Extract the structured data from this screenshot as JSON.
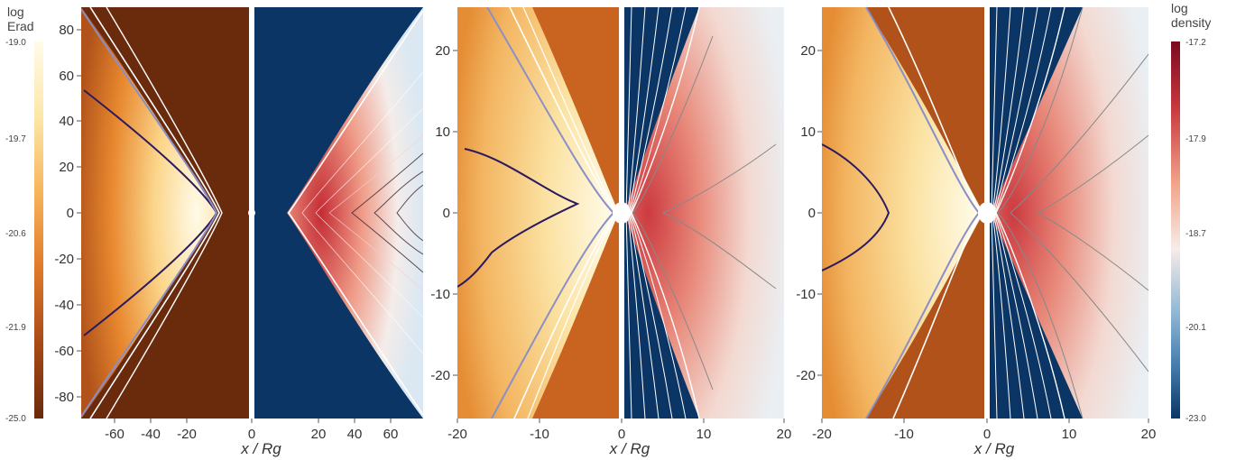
{
  "colorbars": {
    "left": {
      "title_line1": "log",
      "title_line2": "Erad",
      "ticks": [
        "-19.0",
        "-19.7",
        "-20.6",
        "-21.9",
        "-25.0"
      ],
      "colors": [
        "#fffbe8",
        "#fde7a8",
        "#f7b45b",
        "#e07a2a",
        "#a84a17",
        "#6a2a0c"
      ]
    },
    "right": {
      "title_line1": "log",
      "title_line2": "density",
      "ticks": [
        "-17.2",
        "-17.9",
        "-18.7",
        "-20.1",
        "-23.0"
      ],
      "colors": [
        "#7a0a1f",
        "#c93a3f",
        "#f2a58c",
        "#f6ece8",
        "#8fb7d6",
        "#3f78ab",
        "#0b3564"
      ]
    }
  },
  "panels": [
    {
      "xlabel": "x / Rg",
      "xticks": [
        "-60",
        "-40",
        "-20",
        "0",
        "20",
        "40",
        "60"
      ],
      "yticks": [
        "80",
        "60",
        "40",
        "20",
        "0",
        "-20",
        "-40",
        "-60",
        "-80"
      ]
    },
    {
      "xlabel": "x / Rg",
      "xticks": [
        "-20",
        "-10",
        "0",
        "10",
        "20"
      ],
      "yticks": [
        "20",
        "10",
        "0",
        "-10",
        "-20"
      ]
    },
    {
      "xlabel": "x / Rg",
      "xticks": [
        "-20",
        "-10",
        "0",
        "10",
        "20"
      ],
      "yticks": [
        "20",
        "10",
        "0",
        "-10",
        "-20"
      ]
    }
  ]
}
